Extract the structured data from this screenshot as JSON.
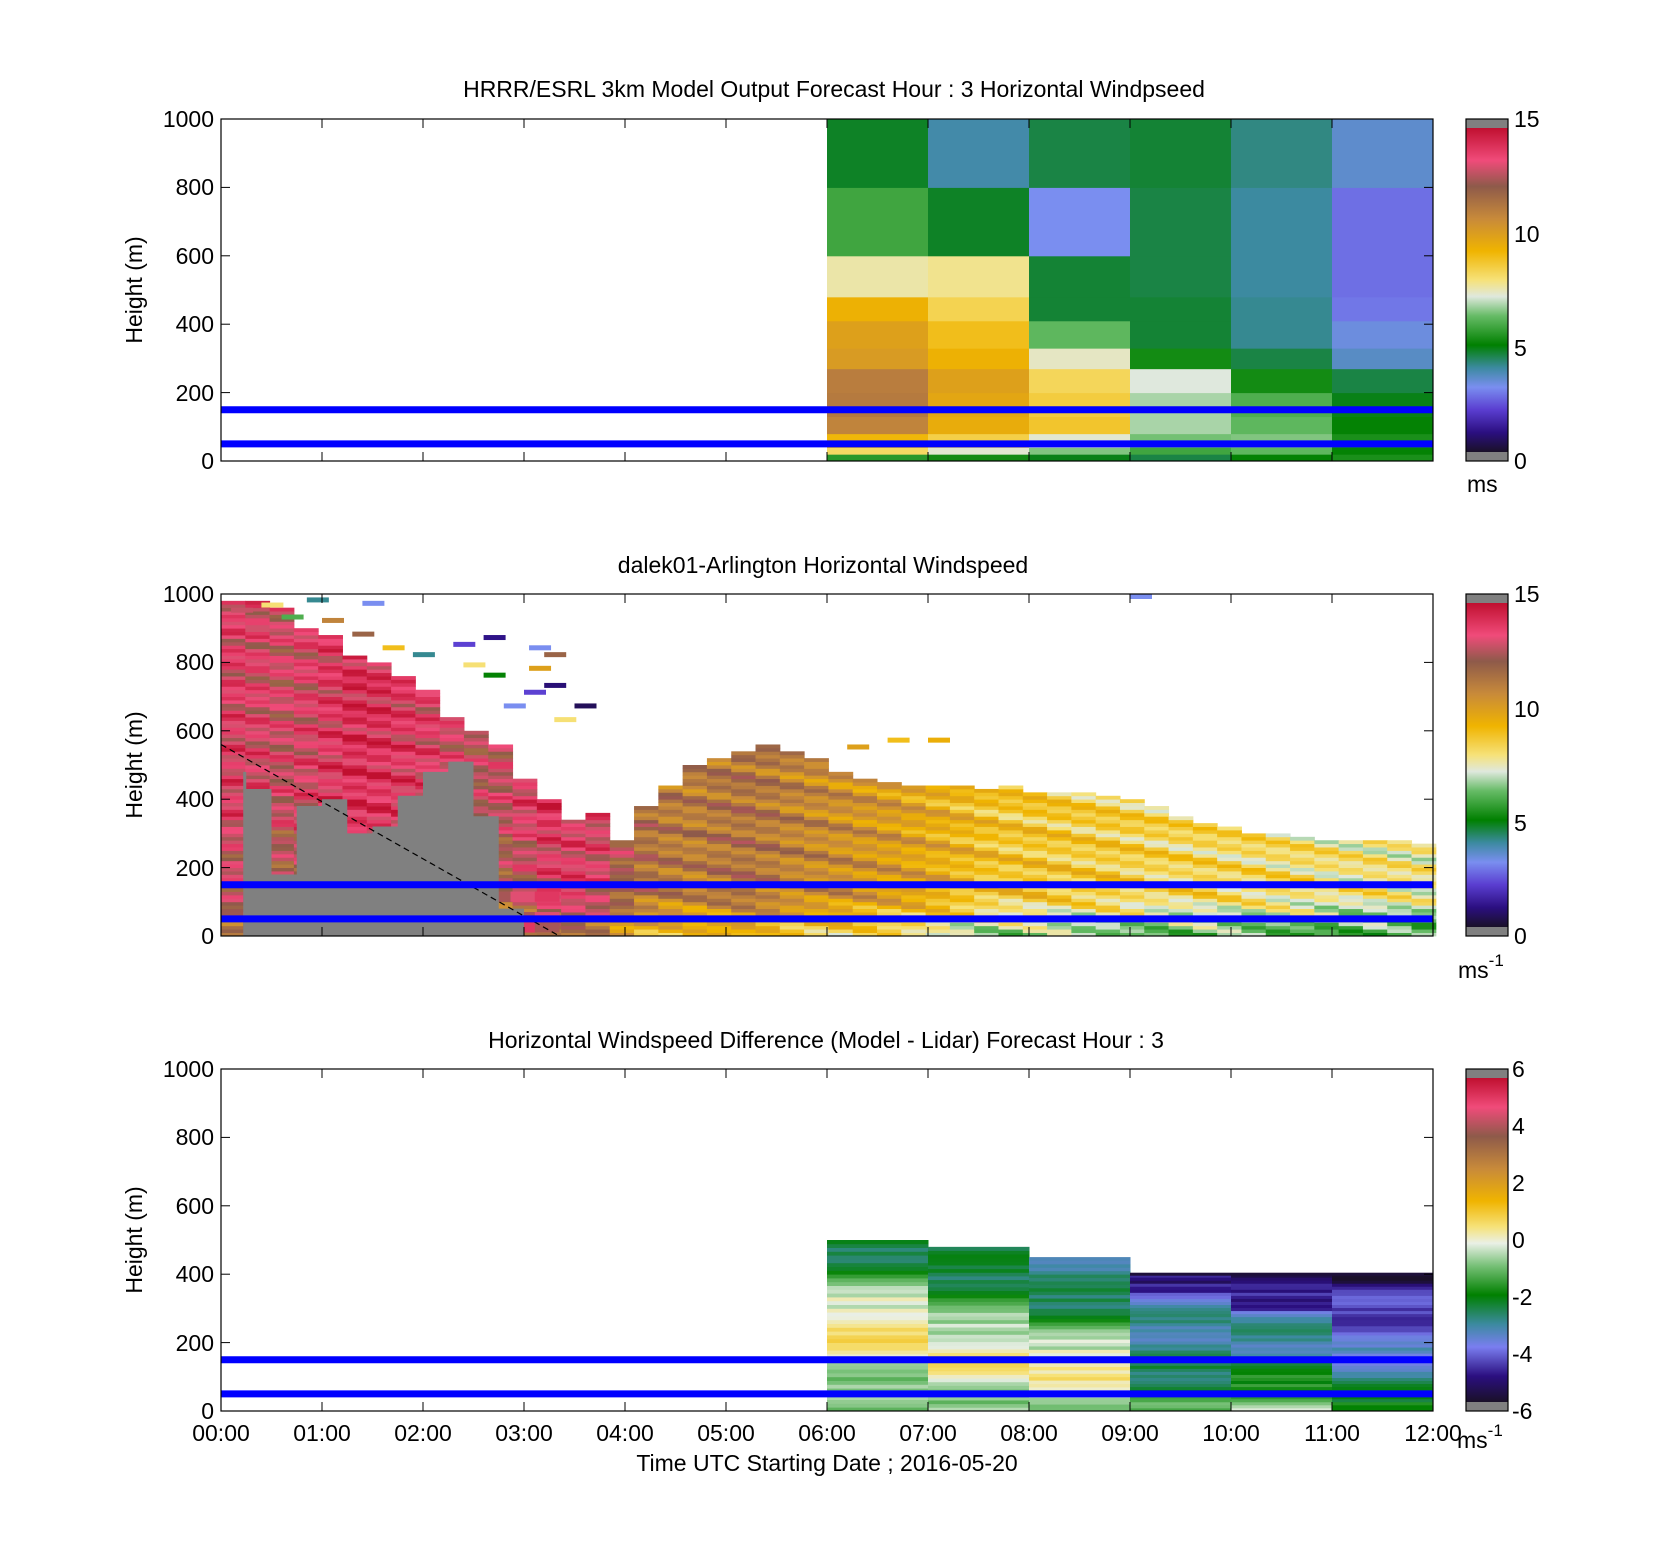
{
  "chart_data": [
    {
      "type": "heatmap",
      "title": "HRRR/ESRL 3km Model Output   Forecast Hour : 3 Horizontal Windpseed",
      "ylabel": "Height (m)",
      "xlim": [
        0,
        12
      ],
      "ylim": [
        0,
        1000
      ],
      "yticks": [
        "0",
        "200",
        "400",
        "600",
        "800",
        "1000"
      ],
      "colorbar": {
        "min": 0,
        "max": 15,
        "ticks": [
          "0",
          "5",
          "10",
          "15"
        ],
        "unit": "ms",
        "unit_sup": ""
      },
      "reference_lines_m": [
        50,
        150
      ],
      "reference_line_color": "#0000ff",
      "columns_hours": [
        6,
        7,
        8,
        9,
        10,
        11,
        12
      ],
      "rows_m": [
        0,
        20,
        40,
        80,
        130,
        200,
        270,
        330,
        410,
        480,
        600,
        800,
        1000
      ],
      "values": [
        [
          5.5,
          5.2,
          4.8,
          4.5,
          5.0,
          5.3
        ],
        [
          8.2,
          7.3,
          6.5,
          5.8,
          6.2,
          5.0
        ],
        [
          9.2,
          8.5,
          7.3,
          6.4,
          6.5,
          5.3
        ],
        [
          11.0,
          9.6,
          8.8,
          6.8,
          6.2,
          5.0
        ],
        [
          11.3,
          9.8,
          8.6,
          6.8,
          6.0,
          4.8
        ],
        [
          11.2,
          10.0,
          8.3,
          7.2,
          5.2,
          4.5
        ],
        [
          10.2,
          9.4,
          7.4,
          5.2,
          4.5,
          3.5
        ],
        [
          10.0,
          9.0,
          6.2,
          4.6,
          4.0,
          3.2
        ],
        [
          9.4,
          8.4,
          4.6,
          4.6,
          4.0,
          2.7
        ],
        [
          7.6,
          7.8,
          4.6,
          4.5,
          3.9,
          2.6
        ],
        [
          5.8,
          4.7,
          3.0,
          4.5,
          3.9,
          2.6
        ],
        [
          4.7,
          3.8,
          4.5,
          4.6,
          4.1,
          3.4
        ]
      ]
    },
    {
      "type": "heatmap",
      "title": "dalek01-Arlington  Horizontal Windspeed",
      "ylabel": "Height (m)",
      "xlim": [
        0,
        12
      ],
      "ylim": [
        0,
        1000
      ],
      "yticks": [
        "0",
        "200",
        "400",
        "600",
        "800",
        "1000"
      ],
      "colorbar": {
        "min": 0,
        "max": 15,
        "ticks": [
          "0",
          "5",
          "10",
          "15"
        ],
        "unit": "ms",
        "unit_sup": "-1"
      },
      "reference_lines_m": [
        50,
        150
      ],
      "reference_line_color": "#0000ff",
      "masked_region_color": "#808080",
      "masked_region_top_m": [
        480,
        430,
        180,
        380,
        400,
        300,
        320,
        410,
        480,
        510,
        350,
        80,
        0
      ],
      "masked_region_hours": [
        0.25,
        0.5,
        0.75,
        1.0,
        1.25,
        1.5,
        1.75,
        2.0,
        2.25,
        2.5,
        2.75,
        3.0,
        3.3
      ],
      "diagonal_line": {
        "from": [
          0,
          560
        ],
        "to": [
          3.35,
          0
        ]
      },
      "profile_tops_m": [
        980,
        980,
        960,
        900,
        880,
        820,
        800,
        760,
        720,
        640,
        600,
        560,
        460,
        400,
        340,
        360,
        280,
        380,
        440,
        500,
        520,
        540,
        560,
        540,
        520,
        480,
        460,
        450,
        440,
        440,
        440,
        430,
        440,
        420,
        420,
        420,
        410,
        400,
        380,
        350,
        330,
        320,
        300,
        300,
        290,
        280,
        280,
        280,
        280,
        270
      ],
      "profile_mean_speed": [
        13,
        12.8,
        12.5,
        12.8,
        13.2,
        13.6,
        13.5,
        13.2,
        13.0,
        12.6,
        12.2,
        12.4,
        13.0,
        13.6,
        13.6,
        13.4,
        12.4,
        11.6,
        11.3,
        11.2,
        11.4,
        11.5,
        11.3,
        11.0,
        10.8,
        10.6,
        10.4,
        10.2,
        9.9,
        9.6,
        9.3,
        9.0,
        8.8,
        8.8,
        8.7,
        8.6,
        8.6,
        8.5,
        8.4,
        8.3,
        8.3,
        8.2,
        8.2,
        8.1,
        8.1,
        8.0,
        7.9,
        7.9,
        7.8,
        7.8
      ]
    },
    {
      "type": "heatmap",
      "title": "Horizontal Windspeed Difference (Model - Lidar) Forecast Hour : 3",
      "xlabel": "Time UTC  Starting Date ; 2016-05-20",
      "ylabel": "Height (m)",
      "xlim": [
        0,
        12
      ],
      "ylim": [
        0,
        1000
      ],
      "xticks": [
        "00:00",
        "01:00",
        "02:00",
        "03:00",
        "04:00",
        "05:00",
        "06:00",
        "07:00",
        "08:00",
        "09:00",
        "10:00",
        "11:00",
        "12:00"
      ],
      "yticks": [
        "0",
        "200",
        "400",
        "600",
        "800",
        "1000"
      ],
      "colorbar": {
        "min": -6,
        "max": 6,
        "ticks": [
          "-6",
          "-4",
          "-2",
          "0",
          "2",
          "4",
          "6"
        ],
        "unit": "ms",
        "unit_sup": "-1"
      },
      "reference_lines_m": [
        50,
        150
      ],
      "reference_line_color": "#0000ff",
      "columns_hours": [
        6,
        7,
        8,
        9,
        10,
        11,
        12
      ],
      "column_tops_m": [
        500,
        480,
        450,
        400,
        400,
        400
      ],
      "column_profiles": [
        [
          -1.2,
          -1.0,
          -0.8,
          -0.5,
          -0.3,
          0.2,
          0.5,
          0.6,
          0.3,
          -0.2,
          -0.8,
          -1.4,
          -2.0,
          -2.4,
          -2.6
        ],
        [
          -0.9,
          -0.6,
          -0.3,
          0.2,
          0.4,
          0.2,
          0.0,
          -0.4,
          -0.9,
          -1.4,
          -1.8,
          -2.2,
          -2.5,
          -2.6,
          -2.6
        ],
        [
          -0.6,
          -0.4,
          -0.2,
          0.3,
          0.5,
          0.2,
          -0.5,
          -1.0,
          -1.6,
          -2.1,
          -2.5,
          -2.8,
          -3.0,
          -3.0,
          -3.0
        ],
        [
          -1.4,
          -1.8,
          -2.2,
          -2.5,
          -2.6,
          -2.8,
          -3.0,
          -3.1,
          -3.0,
          -3.1,
          -3.2,
          -3.4,
          -3.8,
          -4.6,
          -5.2
        ],
        [
          -0.6,
          -1.2,
          -1.6,
          -2.0,
          -2.4,
          -2.8,
          -3.0,
          -3.1,
          -3.1,
          -3.2,
          -3.4,
          -4.6,
          -4.8,
          -5.2,
          -5.6
        ],
        [
          -1.6,
          -2.2,
          -2.6,
          -3.0,
          -3.2,
          -3.4,
          -3.6,
          -4.0,
          -4.2,
          -4.4,
          -4.4,
          -4.6,
          -4.6,
          -4.8,
          -5.6
        ]
      ]
    }
  ]
}
